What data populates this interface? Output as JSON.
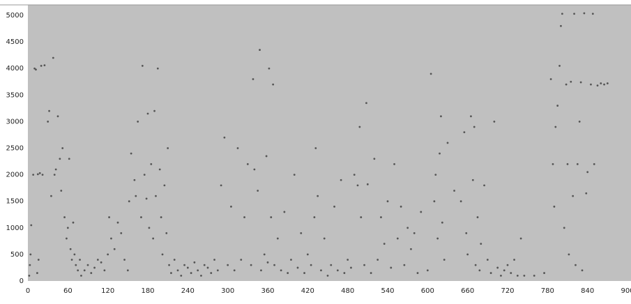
{
  "chart_data": {
    "type": "scatter",
    "series": [
      {
        "color": "#555555",
        "x": [
          2,
          3,
          4,
          5,
          8,
          10,
          12,
          15,
          18,
          20,
          22,
          25,
          14,
          16,
          30,
          32,
          35,
          38,
          40,
          42,
          45,
          48,
          50,
          52,
          55,
          58,
          60,
          62,
          64,
          66,
          68,
          70,
          72,
          75,
          78,
          80,
          85,
          90,
          95,
          100,
          105,
          110,
          115,
          120,
          122,
          125,
          130,
          135,
          140,
          145,
          150,
          152,
          155,
          160,
          162,
          165,
          170,
          172,
          175,
          178,
          180,
          182,
          185,
          188,
          190,
          192,
          195,
          198,
          200,
          202,
          205,
          208,
          210,
          212,
          215,
          220,
          225,
          230,
          235,
          240,
          245,
          250,
          255,
          260,
          265,
          270,
          275,
          280,
          285,
          290,
          295,
          300,
          305,
          310,
          315,
          320,
          325,
          330,
          335,
          338,
          340,
          345,
          348,
          350,
          355,
          358,
          360,
          362,
          365,
          368,
          370,
          375,
          380,
          385,
          390,
          395,
          400,
          405,
          410,
          415,
          420,
          425,
          430,
          432,
          435,
          440,
          445,
          450,
          455,
          460,
          465,
          470,
          475,
          480,
          485,
          490,
          495,
          498,
          500,
          505,
          508,
          510,
          515,
          520,
          525,
          530,
          535,
          540,
          545,
          550,
          555,
          560,
          565,
          570,
          575,
          580,
          585,
          590,
          600,
          605,
          610,
          612,
          615,
          618,
          620,
          622,
          625,
          630,
          640,
          650,
          655,
          658,
          660,
          665,
          668,
          670,
          672,
          675,
          678,
          680,
          685,
          690,
          695,
          700,
          705,
          710,
          715,
          720,
          725,
          730,
          735,
          740,
          745,
          760,
          775,
          785,
          788,
          790,
          792,
          795,
          798,
          800,
          802,
          805,
          808,
          810,
          812,
          815,
          818,
          820,
          822,
          825,
          828,
          830,
          832,
          835,
          838,
          840,
          845,
          848,
          850,
          855,
          860,
          865,
          870
        ],
        "values": [
          100,
          300,
          500,
          1050,
          2000,
          4000,
          3980,
          2010,
          2030,
          4050,
          2000,
          4060,
          150,
          400,
          3000,
          3200,
          1600,
          4200,
          2000,
          2100,
          3100,
          2300,
          1700,
          2500,
          1200,
          800,
          1000,
          2300,
          600,
          400,
          1100,
          500,
          300,
          200,
          400,
          100,
          200,
          300,
          150,
          250,
          400,
          350,
          200,
          500,
          1200,
          800,
          600,
          1100,
          900,
          400,
          200,
          1500,
          2400,
          1900,
          1600,
          3000,
          1200,
          4050,
          2000,
          1550,
          3150,
          1000,
          2200,
          800,
          3200,
          1600,
          4000,
          2100,
          1200,
          500,
          1800,
          900,
          2500,
          300,
          150,
          400,
          200,
          100,
          300,
          250,
          150,
          350,
          200,
          100,
          300,
          250,
          150,
          400,
          200,
          1800,
          2700,
          300,
          1400,
          200,
          2500,
          400,
          1200,
          2200,
          300,
          3800,
          2100,
          1700,
          4350,
          200,
          500,
          2350,
          350,
          4000,
          1200,
          3700,
          300,
          800,
          200,
          1300,
          150,
          400,
          2000,
          250,
          900,
          150,
          500,
          300,
          1200,
          2500,
          1600,
          200,
          800,
          100,
          300,
          1400,
          200,
          1900,
          150,
          400,
          250,
          2000,
          1800,
          2900,
          1200,
          300,
          3350,
          1820,
          150,
          2300,
          400,
          1200,
          700,
          1500,
          250,
          2200,
          800,
          1400,
          300,
          1000,
          600,
          900,
          150,
          1300,
          200,
          3900,
          1500,
          2000,
          800,
          2400,
          3100,
          1100,
          400,
          2600,
          1700,
          1500,
          2800,
          900,
          500,
          3100,
          1900,
          2900,
          300,
          1200,
          200,
          700,
          1800,
          400,
          150,
          3000,
          250,
          100,
          200,
          300,
          150,
          400,
          100,
          800,
          100,
          100,
          150,
          3800,
          2200,
          1400,
          2900,
          3300,
          4050,
          4800,
          5030,
          1000,
          3700,
          2200,
          500,
          3750,
          1600,
          5030,
          300,
          2200,
          3000,
          3740,
          200,
          5040,
          1650,
          2050,
          3700,
          5030,
          2200,
          3680,
          3720,
          3700,
          3720
        ]
      }
    ],
    "xlim": [
      0,
      900
    ],
    "xticks": [
      0,
      60,
      120,
      180,
      240,
      300,
      360,
      420,
      480,
      540,
      600,
      660,
      720,
      780,
      840,
      900
    ],
    "ylim": [
      0,
      5200
    ],
    "yticks": [
      0,
      500,
      1000,
      1500,
      2000,
      2500,
      3000,
      3500,
      4000,
      4500,
      5000
    ],
    "grid": false
  }
}
